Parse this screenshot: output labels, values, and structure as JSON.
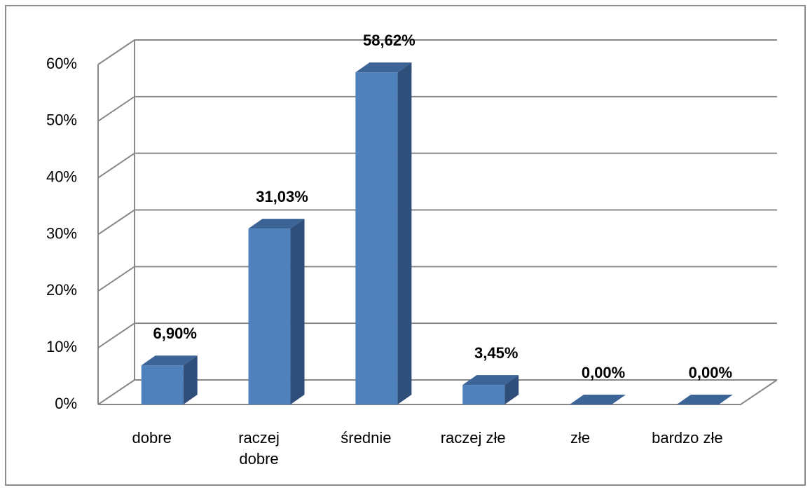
{
  "chart_data": {
    "type": "bar3d",
    "categories": [
      "dobre",
      "raczej dobre",
      "średnie",
      "raczej złe",
      "złe",
      "bardzo złe"
    ],
    "values": [
      6.9,
      31.03,
      58.62,
      3.45,
      0,
      0
    ],
    "value_labels": [
      "6,90%",
      "31,03%",
      "58,62%",
      "3,45%",
      "0,00%",
      "0,00%"
    ],
    "color": "#4f81bd",
    "ylim": [
      0,
      60
    ],
    "yticks": [
      {
        "value": 0,
        "label": "0%"
      },
      {
        "value": 10,
        "label": "10%"
      },
      {
        "value": 20,
        "label": "20%"
      },
      {
        "value": 30,
        "label": "30%"
      },
      {
        "value": 40,
        "label": "40%"
      },
      {
        "value": 50,
        "label": "50%"
      },
      {
        "value": 60,
        "label": "60%"
      }
    ],
    "grid": true
  }
}
